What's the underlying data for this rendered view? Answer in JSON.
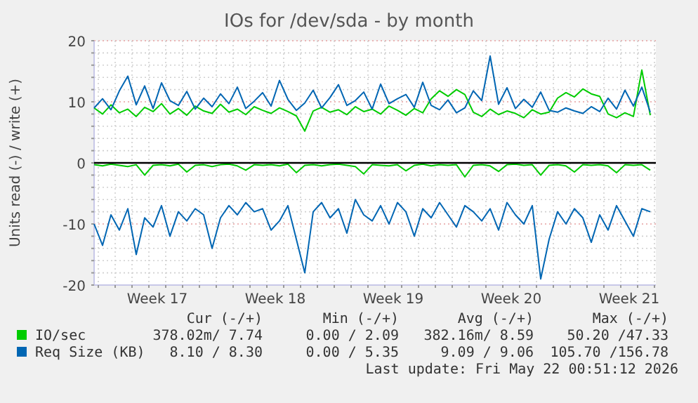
{
  "chart_data": {
    "type": "line",
    "title": "IOs for /dev/sda - by month",
    "ylabel": "Units read (-) / write (+)",
    "x": [
      "2026-04-19T18:00",
      "2026-04-20T06:00",
      "2026-04-20T18:00",
      "2026-04-21T06:00",
      "2026-04-21T18:00",
      "2026-04-22T06:00",
      "2026-04-22T18:00",
      "2026-04-23T06:00",
      "2026-04-23T18:00",
      "2026-04-24T06:00",
      "2026-04-24T18:00",
      "2026-04-25T06:00",
      "2026-04-25T18:00",
      "2026-04-26T06:00",
      "2026-04-26T18:00",
      "2026-04-27T06:00",
      "2026-04-27T18:00",
      "2026-04-28T06:00",
      "2026-04-28T18:00",
      "2026-04-29T06:00",
      "2026-04-29T18:00",
      "2026-04-30T06:00",
      "2026-04-30T18:00",
      "2026-05-01T06:00",
      "2026-05-01T18:00",
      "2026-05-02T06:00",
      "2026-05-02T18:00",
      "2026-05-03T06:00",
      "2026-05-03T18:00",
      "2026-05-04T06:00",
      "2026-05-04T18:00",
      "2026-05-05T06:00",
      "2026-05-05T18:00",
      "2026-05-06T06:00",
      "2026-05-06T18:00",
      "2026-05-07T06:00",
      "2026-05-07T18:00",
      "2026-05-08T06:00",
      "2026-05-08T18:00",
      "2026-05-09T06:00",
      "2026-05-09T18:00",
      "2026-05-10T06:00",
      "2026-05-10T18:00",
      "2026-05-11T06:00",
      "2026-05-11T18:00",
      "2026-05-12T06:00",
      "2026-05-12T18:00",
      "2026-05-13T06:00",
      "2026-05-13T18:00",
      "2026-05-14T06:00",
      "2026-05-14T18:00",
      "2026-05-15T06:00",
      "2026-05-15T18:00",
      "2026-05-16T06:00",
      "2026-05-16T18:00",
      "2026-05-17T06:00",
      "2026-05-17T18:00",
      "2026-05-18T06:00",
      "2026-05-18T18:00",
      "2026-05-19T06:00",
      "2026-05-19T18:00",
      "2026-05-20T06:00",
      "2026-05-20T18:00",
      "2026-05-21T06:00",
      "2026-05-21T18:00",
      "2026-05-22T06:00",
      "2026-05-22T18:00"
    ],
    "series": [
      {
        "name": "IO/sec",
        "color": "#00cc00",
        "values": [
          9,
          8,
          9.5,
          8.2,
          8.8,
          7.6,
          9.1,
          8.4,
          9.7,
          8,
          8.9,
          7.8,
          9.3,
          8.5,
          8.1,
          9.6,
          8.3,
          8.8,
          7.9,
          9.2,
          8.6,
          8.1,
          9,
          8.4,
          7.7,
          5.2,
          8.5,
          9.1,
          8.3,
          8.7,
          7.9,
          9.2,
          8.4,
          8.8,
          8,
          9.3,
          8.6,
          7.8,
          8.9,
          8.2,
          10.5,
          11.8,
          10.9,
          12,
          11.2,
          8.3,
          7.6,
          8.8,
          7.9,
          8.5,
          8.1,
          7.4,
          8.7,
          8,
          8.3,
          10.6,
          11.5,
          10.8,
          12.1,
          11.3,
          10.9,
          8,
          7.4,
          8.2,
          7.6,
          15.2,
          7.8
        ]
      },
      {
        "color": "#00cc00",
        "values": [
          -0.3,
          -0.5,
          -0.2,
          -0.4,
          -0.6,
          -0.3,
          -2,
          -0.4,
          -0.3,
          -0.5,
          -0.2,
          -1.5,
          -0.4,
          -0.3,
          -0.6,
          -0.3,
          -0.2,
          -0.5,
          -1.2,
          -0.3,
          -0.4,
          -0.3,
          -0.5,
          -0.2,
          -1.6,
          -0.4,
          -0.3,
          -0.5,
          -0.3,
          -0.2,
          -0.4,
          -0.6,
          -1.8,
          -0.3,
          -0.4,
          -0.5,
          -0.3,
          -1.3,
          -0.4,
          -0.2,
          -0.5,
          -0.3,
          -0.4,
          -0.3,
          -2.3,
          -0.4,
          -0.3,
          -0.5,
          -1.4,
          -0.3,
          -0.2,
          -0.4,
          -0.3,
          -2,
          -0.4,
          -0.3,
          -0.5,
          -1.5,
          -0.3,
          -0.4,
          -0.3,
          -0.5,
          -1.6,
          -0.3,
          -0.4,
          -0.3,
          -1.2
        ]
      },
      {
        "name": "Req Size (KB)",
        "color": "#0066b3",
        "values": [
          9,
          10.5,
          8.7,
          11.8,
          14.2,
          9.5,
          12.6,
          8.9,
          13.1,
          10.2,
          9.4,
          11.7,
          8.8,
          10.6,
          9.2,
          11.3,
          9.7,
          12.4,
          8.9,
          10.1,
          11.5,
          9.3,
          13.5,
          10.4,
          8.6,
          9.8,
          11.9,
          9,
          10.7,
          12.8,
          9.4,
          10.2,
          11.6,
          8.8,
          12.9,
          9.7,
          10.5,
          11.2,
          9.1,
          13.2,
          9.4,
          8.7,
          10.3,
          8.2,
          9,
          11.8,
          10.2,
          17.5,
          9.6,
          12.3,
          8.9,
          10.4,
          9.1,
          11.6,
          8.6,
          8.3,
          9,
          8.5,
          8.1,
          9.2,
          8.4,
          10.6,
          8.8,
          11.9,
          9.3,
          12.4,
          8.3
        ]
      },
      {
        "color": "#0066b3",
        "values": [
          -10,
          -13.5,
          -8.5,
          -11,
          -7.5,
          -15,
          -9,
          -10.5,
          -7,
          -12,
          -8,
          -9.5,
          -7.5,
          -8.5,
          -14,
          -9,
          -7,
          -8.5,
          -6.5,
          -8,
          -7.5,
          -11,
          -9.5,
          -7,
          -12.5,
          -18,
          -8,
          -6.5,
          -9,
          -7.5,
          -11.5,
          -6,
          -8.5,
          -9.5,
          -7,
          -10,
          -6.5,
          -8,
          -12,
          -7.5,
          -9,
          -6.5,
          -8.5,
          -10.5,
          -7,
          -8,
          -9.5,
          -7.5,
          -11,
          -6.5,
          -8.5,
          -10,
          -7,
          -19,
          -12.5,
          -8,
          -10,
          -7.5,
          -9,
          -13,
          -8.5,
          -11,
          -7,
          -9.5,
          -12,
          -7.5,
          -8
        ]
      }
    ],
    "xlim": [
      "2026-04-19T18:00",
      "2026-05-23T02:00"
    ],
    "xticks": [
      {
        "value": "2026-04-20",
        "label": null
      },
      {
        "value": "2026-04-21",
        "label": null
      },
      {
        "value": "2026-04-22",
        "label": null
      },
      {
        "value": "2026-04-23",
        "label": null
      },
      {
        "value": "2026-04-23T12:00",
        "label": "Week 17"
      },
      {
        "value": "2026-04-24",
        "label": null
      },
      {
        "value": "2026-04-25",
        "label": null
      },
      {
        "value": "2026-04-26",
        "label": null
      },
      {
        "value": "2026-04-27",
        "label": null
      },
      {
        "value": "2026-04-28",
        "label": null
      },
      {
        "value": "2026-04-29",
        "label": null
      },
      {
        "value": "2026-04-30",
        "label": null
      },
      {
        "value": "2026-04-30T12:00",
        "label": "Week 18"
      },
      {
        "value": "2026-05-01",
        "label": null
      },
      {
        "value": "2026-05-02",
        "label": null
      },
      {
        "value": "2026-05-03",
        "label": null
      },
      {
        "value": "2026-05-04",
        "label": null
      },
      {
        "value": "2026-05-05",
        "label": null
      },
      {
        "value": "2026-05-06",
        "label": null
      },
      {
        "value": "2026-05-07",
        "label": null
      },
      {
        "value": "2026-05-07T12:00",
        "label": "Week 19"
      },
      {
        "value": "2026-05-08",
        "label": null
      },
      {
        "value": "2026-05-09",
        "label": null
      },
      {
        "value": "2026-05-10",
        "label": null
      },
      {
        "value": "2026-05-11",
        "label": null
      },
      {
        "value": "2026-05-12",
        "label": null
      },
      {
        "value": "2026-05-13",
        "label": null
      },
      {
        "value": "2026-05-14",
        "label": null
      },
      {
        "value": "2026-05-14T12:00",
        "label": "Week 20"
      },
      {
        "value": "2026-05-15",
        "label": null
      },
      {
        "value": "2026-05-16",
        "label": null
      },
      {
        "value": "2026-05-17",
        "label": null
      },
      {
        "value": "2026-05-18",
        "label": null
      },
      {
        "value": "2026-05-19",
        "label": null
      },
      {
        "value": "2026-05-20",
        "label": null
      },
      {
        "value": "2026-05-21",
        "label": null
      },
      {
        "value": "2026-05-21T12:00",
        "label": "Week 21"
      },
      {
        "value": "2026-05-22",
        "label": null
      },
      {
        "value": "2026-05-23",
        "label": null
      }
    ],
    "ylim": [
      -20,
      20
    ],
    "yticks": [
      -20,
      {
        "value": -18,
        "label": null
      },
      {
        "value": -16,
        "label": null
      },
      {
        "value": -14,
        "label": null
      },
      {
        "value": -12,
        "label": null
      },
      -10,
      {
        "value": -8,
        "label": null
      },
      {
        "value": -6,
        "label": null
      },
      {
        "value": -4,
        "label": null
      },
      {
        "value": -2,
        "label": null
      },
      0,
      {
        "value": 2,
        "label": null
      },
      {
        "value": 4,
        "label": null
      },
      {
        "value": 6,
        "label": null
      },
      {
        "value": 8,
        "label": null
      },
      10,
      {
        "value": 12,
        "label": null
      },
      {
        "value": 14,
        "label": null
      },
      {
        "value": 16,
        "label": null
      },
      {
        "value": 18,
        "label": null
      },
      20
    ],
    "grid": true,
    "ref_lines": [
      {
        "axis": "y",
        "value": 0,
        "color": "#000000"
      }
    ],
    "legend": "bottom",
    "annotations": [
      "Cur (-/+)",
      "Min (-/+)",
      "Avg (-/+)",
      "Max (-/+)",
      "378.02m/ 7.74",
      "0.00 / 2.09",
      "382.16m/ 8.59",
      "50.20 /47.33",
      "8.10 / 8.30",
      "0.00 / 5.35",
      "9.09 / 9.06",
      "105.70 /156.78",
      "Last update: Fri May 22 00:51:12 2026"
    ]
  }
}
